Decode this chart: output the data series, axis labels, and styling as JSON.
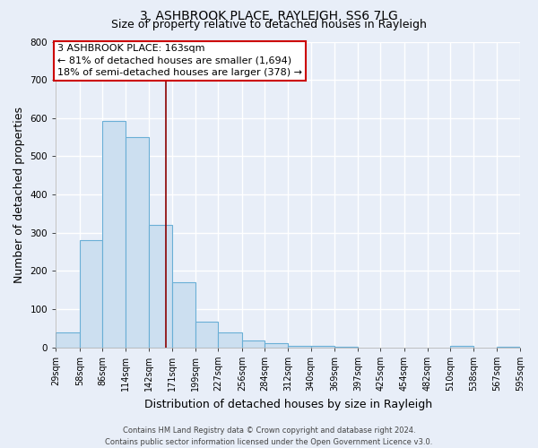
{
  "title": "3, ASHBROOK PLACE, RAYLEIGH, SS6 7LG",
  "subtitle": "Size of property relative to detached houses in Rayleigh",
  "xlabel": "Distribution of detached houses by size in Rayleigh",
  "ylabel": "Number of detached properties",
  "bin_edges": [
    29,
    58,
    86,
    114,
    142,
    171,
    199,
    227,
    256,
    284,
    312,
    340,
    369,
    397,
    425,
    454,
    482,
    510,
    538,
    567,
    595
  ],
  "bin_counts": [
    38,
    280,
    592,
    550,
    320,
    170,
    68,
    38,
    18,
    10,
    5,
    3,
    2,
    0,
    0,
    0,
    0,
    3,
    0,
    2
  ],
  "bar_color": "#ccdff0",
  "bar_edge_color": "#6aafd6",
  "vline_x": 163,
  "vline_color": "#8b0000",
  "annotation_text": "3 ASHBROOK PLACE: 163sqm\n← 81% of detached houses are smaller (1,694)\n18% of semi-detached houses are larger (378) →",
  "annotation_box_color": "#ffffff",
  "annotation_box_edge_color": "#cc0000",
  "ylim": [
    0,
    800
  ],
  "yticks": [
    0,
    100,
    200,
    300,
    400,
    500,
    600,
    700,
    800
  ],
  "tick_labels": [
    "29sqm",
    "58sqm",
    "86sqm",
    "114sqm",
    "142sqm",
    "171sqm",
    "199sqm",
    "227sqm",
    "256sqm",
    "284sqm",
    "312sqm",
    "340sqm",
    "369sqm",
    "397sqm",
    "425sqm",
    "454sqm",
    "482sqm",
    "510sqm",
    "538sqm",
    "567sqm",
    "595sqm"
  ],
  "footer_line1": "Contains HM Land Registry data © Crown copyright and database right 2024.",
  "footer_line2": "Contains public sector information licensed under the Open Government Licence v3.0.",
  "background_color": "#e8eef8",
  "plot_bg_color": "#e8eef8",
  "grid_color": "#ffffff",
  "title_fontsize": 10,
  "subtitle_fontsize": 9,
  "axis_label_fontsize": 9,
  "tick_fontsize": 7,
  "footer_fontsize": 6,
  "annotation_fontsize": 8
}
